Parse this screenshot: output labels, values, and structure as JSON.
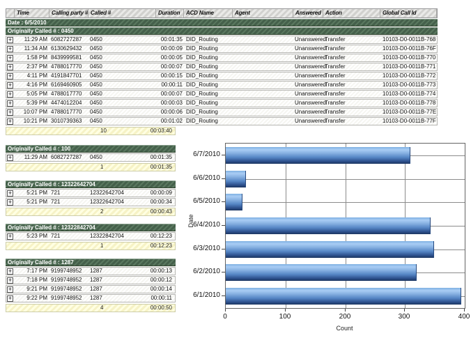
{
  "table": {
    "columns": [
      "",
      "Time",
      "Calling party #",
      "Called #",
      "Duration",
      "ACD Name",
      "Agent",
      "Answered",
      "Action",
      "Global Call Id"
    ],
    "date_label": "Date : 6/5/2010",
    "groups": [
      {
        "label": "Originally Called # : 0450",
        "wide": true,
        "rows": [
          {
            "time": "11:29 AM",
            "calling": "6082727287",
            "called": "0450",
            "duration": "00:01:35",
            "acd": "DID_Routing",
            "agent": "",
            "answered": "Unanswered",
            "action": "Transfer",
            "global_id": "10103-D0-0011B-768"
          },
          {
            "time": "11:34 AM",
            "calling": "6130629432",
            "called": "0450",
            "duration": "00:00:09",
            "acd": "DID_Routing",
            "agent": "",
            "answered": "Unanswered",
            "action": "Transfer",
            "global_id": "10103-D0-0011B-76F"
          },
          {
            "time": "1:58 PM",
            "calling": "8439999581",
            "called": "0450",
            "duration": "00:00:05",
            "acd": "DID_Routing",
            "agent": "",
            "answered": "Unanswered",
            "action": "Transfer",
            "global_id": "10103-D0-0011B-770"
          },
          {
            "time": "2:37 PM",
            "calling": "4788017770",
            "called": "0450",
            "duration": "00:00:07",
            "acd": "DID_Routing",
            "agent": "",
            "answered": "Unanswered",
            "action": "Transfer",
            "global_id": "10103-D0-0011B-771"
          },
          {
            "time": "4:11 PM",
            "calling": "4191847701",
            "called": "0450",
            "duration": "00:00:15",
            "acd": "DID_Routing",
            "agent": "",
            "answered": "Unanswered",
            "action": "Transfer",
            "global_id": "10103-D0-0011B-772"
          },
          {
            "time": "4:16 PM",
            "calling": "6169460905",
            "called": "0450",
            "duration": "00:00:11",
            "acd": "DID_Routing",
            "agent": "",
            "answered": "Unanswered",
            "action": "Transfer",
            "global_id": "10103-D0-0011B-773"
          },
          {
            "time": "5:05 PM",
            "calling": "4788017770",
            "called": "0450",
            "duration": "00:00:07",
            "acd": "DID_Routing",
            "agent": "",
            "answered": "Unanswered",
            "action": "Transfer",
            "global_id": "10103-D0-0011B-774"
          },
          {
            "time": "5:39 PM",
            "calling": "4474012204",
            "called": "0450",
            "duration": "00:00:03",
            "acd": "DID_Routing",
            "agent": "",
            "answered": "Unanswered",
            "action": "Transfer",
            "global_id": "10103-D0-0011B-778"
          },
          {
            "time": "10:07 PM",
            "calling": "4788017770",
            "called": "0450",
            "duration": "00:00:06",
            "acd": "DID_Routing",
            "agent": "",
            "answered": "Unanswered",
            "action": "Transfer",
            "global_id": "10103-D0-0011B-77E"
          },
          {
            "time": "10:21 PM",
            "calling": "3010739363",
            "called": "0450",
            "duration": "00:01:02",
            "acd": "DID_Routing",
            "agent": "",
            "answered": "Unanswered",
            "action": "Transfer",
            "global_id": "10103-D0-0011B-77F"
          }
        ],
        "summary": {
          "count": "10",
          "duration": "00:03:40"
        }
      },
      {
        "label": "Originally Called # : 100",
        "wide": false,
        "rows": [
          {
            "time": "11:29 AM",
            "calling": "6082727287",
            "called": "0450",
            "duration": "00:01:35"
          }
        ],
        "summary": {
          "count": "1",
          "duration": "00:01:35"
        }
      },
      {
        "label": "Originally Called # : 12322642704",
        "wide": false,
        "rows": [
          {
            "time": "5:21 PM",
            "calling": "721",
            "called": "12322642704",
            "duration": "00:00:09"
          },
          {
            "time": "5:21 PM",
            "calling": "721",
            "called": "12322642704",
            "duration": "00:00:34"
          }
        ],
        "summary": {
          "count": "2",
          "duration": "00:00:43"
        }
      },
      {
        "label": "Originally Called # : 12322842704",
        "wide": false,
        "rows": [
          {
            "time": "5:23 PM",
            "calling": "721",
            "called": "12322842704",
            "duration": "00:12:23"
          }
        ],
        "summary": {
          "count": "1",
          "duration": "00:12:23"
        }
      },
      {
        "label": "Originally Called # : 1287",
        "wide": false,
        "rows": [
          {
            "time": "7:17 PM",
            "calling": "9199748952",
            "called": "1287",
            "duration": "00:00:13"
          },
          {
            "time": "7:18 PM",
            "calling": "9199748952",
            "called": "1287",
            "duration": "00:00:12"
          },
          {
            "time": "9:21 PM",
            "calling": "9199748952",
            "called": "1287",
            "duration": "00:00:14"
          },
          {
            "time": "9:22 PM",
            "calling": "9199748952",
            "called": "1287",
            "duration": "00:00:11"
          }
        ],
        "summary": {
          "count": "4",
          "duration": "00:00:50"
        }
      }
    ]
  },
  "icons": {
    "expand": "+"
  },
  "chart_data": {
    "type": "bar",
    "orientation": "horizontal",
    "title": "",
    "categories": [
      "6/7/2010",
      "6/6/2010",
      "6/5/2010",
      "6/4/2010",
      "6/3/2010",
      "6/2/2010",
      "6/1/2010"
    ],
    "values": [
      308,
      33,
      27,
      342,
      348,
      318,
      393
    ],
    "xlabel": "Count",
    "ylabel": "Date",
    "xlim": [
      0,
      400
    ],
    "xticks": [
      0,
      100,
      200,
      300,
      400
    ],
    "grid": true,
    "legend": "none"
  },
  "colors": {
    "group_band_green": "#4d6a52",
    "summary_yellow": "#fdf8d0",
    "header_gray": "#d9d9d6",
    "bar_light_blue": "#a9cdf4",
    "bar_dark_blue": "#1b3560",
    "grid_gray": "#8b8b8b"
  }
}
